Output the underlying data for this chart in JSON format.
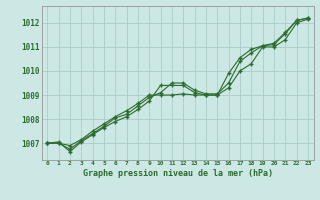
{
  "title": "Graphe pression niveau de la mer (hPa)",
  "background_color": "#cce8e4",
  "grid_color": "#aacccc",
  "line_color": "#2d6b2d",
  "x_labels": [
    "0",
    "1",
    "2",
    "3",
    "4",
    "5",
    "6",
    "7",
    "8",
    "9",
    "10",
    "11",
    "12",
    "13",
    "14",
    "15",
    "16",
    "17",
    "18",
    "19",
    "20",
    "21",
    "22",
    "23"
  ],
  "ylim": [
    1006.3,
    1012.7
  ],
  "yticks": [
    1007,
    1008,
    1009,
    1010,
    1011,
    1012
  ],
  "series1": [
    1007.0,
    1007.05,
    1006.65,
    1007.05,
    1007.35,
    1007.65,
    1007.9,
    1008.1,
    1008.4,
    1008.75,
    1009.4,
    1009.4,
    1009.4,
    1009.1,
    1009.0,
    1009.0,
    1009.3,
    1010.0,
    1010.3,
    1011.0,
    1011.0,
    1011.3,
    1012.0,
    1012.15
  ],
  "series2": [
    1007.0,
    1007.0,
    1006.75,
    1007.1,
    1007.4,
    1007.7,
    1008.05,
    1008.2,
    1008.55,
    1008.9,
    1009.1,
    1009.5,
    1009.5,
    1009.2,
    1009.05,
    1009.05,
    1009.5,
    1010.4,
    1010.75,
    1011.05,
    1011.1,
    1011.55,
    1012.1,
    1012.2
  ],
  "series3": [
    1007.0,
    1007.0,
    1006.9,
    1007.15,
    1007.5,
    1007.8,
    1008.1,
    1008.35,
    1008.65,
    1009.0,
    1009.0,
    1009.0,
    1009.05,
    1009.0,
    1009.0,
    1009.0,
    1009.9,
    1010.55,
    1010.9,
    1011.05,
    1011.15,
    1011.6,
    1012.1,
    1012.2
  ]
}
